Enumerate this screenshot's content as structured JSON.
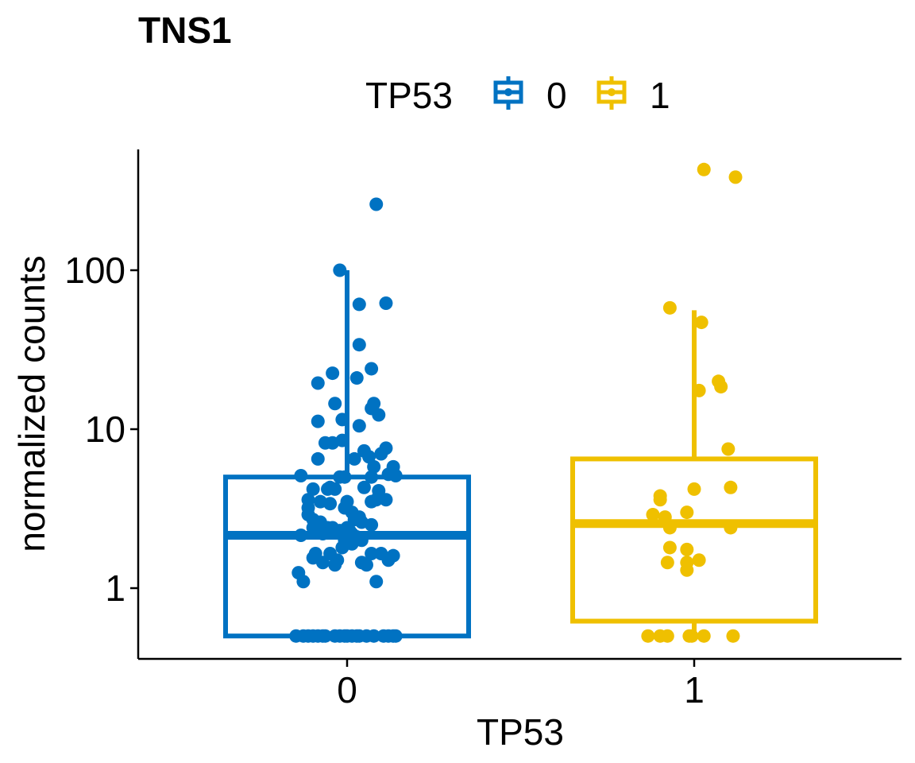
{
  "chart_data": {
    "type": "box",
    "title": "TNS1",
    "xlabel": "TP53",
    "ylabel": "normalized counts",
    "y_scale": "log10",
    "ylim": [
      0.4,
      560
    ],
    "y_ticks": [
      1,
      10,
      100
    ],
    "y_tick_labels": [
      "1",
      "10",
      "100"
    ],
    "categories": [
      "0",
      "1"
    ],
    "legend": {
      "title": "TP53",
      "position": "top",
      "entries": [
        {
          "label": "0",
          "color": "#0072C2"
        },
        {
          "label": "1",
          "color": "#EFC000"
        }
      ]
    },
    "grid": false,
    "series": [
      {
        "name": "0",
        "color": "#0072C2",
        "box": {
          "min": 0.5,
          "q1": 0.5,
          "median": 2.15,
          "q3": 5.0,
          "max": 100
        },
        "points": [
          [
            0.12,
            260
          ],
          [
            -0.03,
            100
          ],
          [
            0.16,
            62
          ],
          [
            0.05,
            61
          ],
          [
            0.05,
            34
          ],
          [
            0.1,
            24
          ],
          [
            -0.06,
            22.5
          ],
          [
            0.04,
            21
          ],
          [
            -0.12,
            19.5
          ],
          [
            0.11,
            14.5
          ],
          [
            -0.05,
            14.5
          ],
          [
            0.1,
            13.5
          ],
          [
            0.13,
            12.3
          ],
          [
            -0.12,
            11.2
          ],
          [
            -0.02,
            11.5
          ],
          [
            0.05,
            10.5
          ],
          [
            0.16,
            7.6
          ],
          [
            0.07,
            7.3
          ],
          [
            0.14,
            7.0
          ],
          [
            0.09,
            6.7
          ],
          [
            0.03,
            6.5
          ],
          [
            -0.12,
            6.5
          ],
          [
            -0.09,
            8.2
          ],
          [
            -0.06,
            8.2
          ],
          [
            -0.02,
            8.5
          ],
          [
            0.11,
            5.8
          ],
          [
            0.19,
            5.8
          ],
          [
            0.17,
            5.2
          ],
          [
            0.2,
            5.1
          ],
          [
            -0.19,
            5.1
          ],
          [
            -0.03,
            5.0
          ],
          [
            -0.01,
            5.0
          ],
          [
            0.1,
            5.0
          ],
          [
            -0.14,
            4.2
          ],
          [
            -0.07,
            4.3
          ],
          [
            -0.05,
            4.2
          ],
          [
            -0.08,
            4.2
          ],
          [
            0.07,
            4.3
          ],
          [
            0.13,
            4.1
          ],
          [
            -0.16,
            3.6
          ],
          [
            -0.11,
            3.5
          ],
          [
            -0.07,
            3.4
          ],
          [
            0.0,
            3.5
          ],
          [
            0.1,
            3.5
          ],
          [
            0.12,
            3.6
          ],
          [
            0.16,
            3.6
          ],
          [
            -0.16,
            3.2
          ],
          [
            -0.01,
            3.2
          ],
          [
            0.02,
            3.0
          ],
          [
            -0.16,
            2.9
          ],
          [
            -0.14,
            2.7
          ],
          [
            -0.11,
            2.6
          ],
          [
            -0.06,
            2.4
          ],
          [
            0.01,
            2.3
          ],
          [
            0.03,
            2.7
          ],
          [
            0.05,
            2.8
          ],
          [
            0.06,
            2.6
          ],
          [
            0.1,
            2.5
          ],
          [
            -0.14,
            2.4
          ],
          [
            -0.08,
            2.4
          ],
          [
            0.0,
            2.4
          ],
          [
            0.02,
            2.2
          ],
          [
            0.04,
            2.1
          ],
          [
            -0.19,
            2.15
          ],
          [
            -0.1,
            2.2
          ],
          [
            -0.03,
            2.3
          ],
          [
            -0.01,
            2.0
          ],
          [
            -0.02,
            1.8
          ],
          [
            0.02,
            1.9
          ],
          [
            0.06,
            2.0
          ],
          [
            0.1,
            1.65
          ],
          [
            0.14,
            1.65
          ],
          [
            0.19,
            1.6
          ],
          [
            -0.13,
            1.65
          ],
          [
            -0.07,
            1.65
          ],
          [
            -0.14,
            1.55
          ],
          [
            -0.1,
            1.45
          ],
          [
            -0.04,
            1.5
          ],
          [
            -0.05,
            1.4
          ],
          [
            0.06,
            1.45
          ],
          [
            0.08,
            1.4
          ],
          [
            0.17,
            1.5
          ],
          [
            -0.2,
            1.25
          ],
          [
            -0.18,
            1.1
          ],
          [
            0.12,
            1.1
          ],
          [
            -0.21,
            0.5
          ],
          [
            -0.18,
            0.5
          ],
          [
            -0.16,
            0.5
          ],
          [
            -0.14,
            0.5
          ],
          [
            -0.12,
            0.5
          ],
          [
            -0.1,
            0.5
          ],
          [
            -0.09,
            0.5
          ],
          [
            -0.05,
            0.5
          ],
          [
            -0.03,
            0.5
          ],
          [
            -0.01,
            0.5
          ],
          [
            0.0,
            0.5
          ],
          [
            0.02,
            0.5
          ],
          [
            0.04,
            0.5
          ],
          [
            0.05,
            0.5
          ],
          [
            0.08,
            0.5
          ],
          [
            0.11,
            0.5
          ],
          [
            0.15,
            0.5
          ],
          [
            0.17,
            0.5
          ],
          [
            0.19,
            0.5
          ],
          [
            0.2,
            0.5
          ]
        ]
      },
      {
        "name": "1",
        "color": "#EFC000",
        "box": {
          "min": 0.5,
          "q1": 0.62,
          "median": 2.55,
          "q3": 6.5,
          "max": 56
        },
        "points": [
          [
            0.04,
            430
          ],
          [
            0.17,
            385
          ],
          [
            -0.1,
            58
          ],
          [
            0.03,
            47
          ],
          [
            0.1,
            20
          ],
          [
            0.11,
            18.5
          ],
          [
            0.02,
            17.5
          ],
          [
            0.14,
            7.5
          ],
          [
            0.15,
            4.3
          ],
          [
            0.0,
            4.2
          ],
          [
            -0.14,
            3.8
          ],
          [
            -0.14,
            3.6
          ],
          [
            -0.17,
            2.9
          ],
          [
            -0.12,
            2.8
          ],
          [
            -0.03,
            3.0
          ],
          [
            -0.1,
            2.4
          ],
          [
            0.15,
            2.4
          ],
          [
            -0.1,
            1.8
          ],
          [
            -0.03,
            1.75
          ],
          [
            -0.11,
            1.45
          ],
          [
            -0.03,
            1.45
          ],
          [
            0.02,
            1.5
          ],
          [
            -0.03,
            1.3
          ],
          [
            -0.19,
            0.5
          ],
          [
            -0.14,
            0.5
          ],
          [
            -0.11,
            0.5
          ],
          [
            -0.02,
            0.5
          ],
          [
            -0.01,
            0.5
          ],
          [
            0.04,
            0.5
          ],
          [
            0.16,
            0.5
          ]
        ]
      }
    ]
  }
}
